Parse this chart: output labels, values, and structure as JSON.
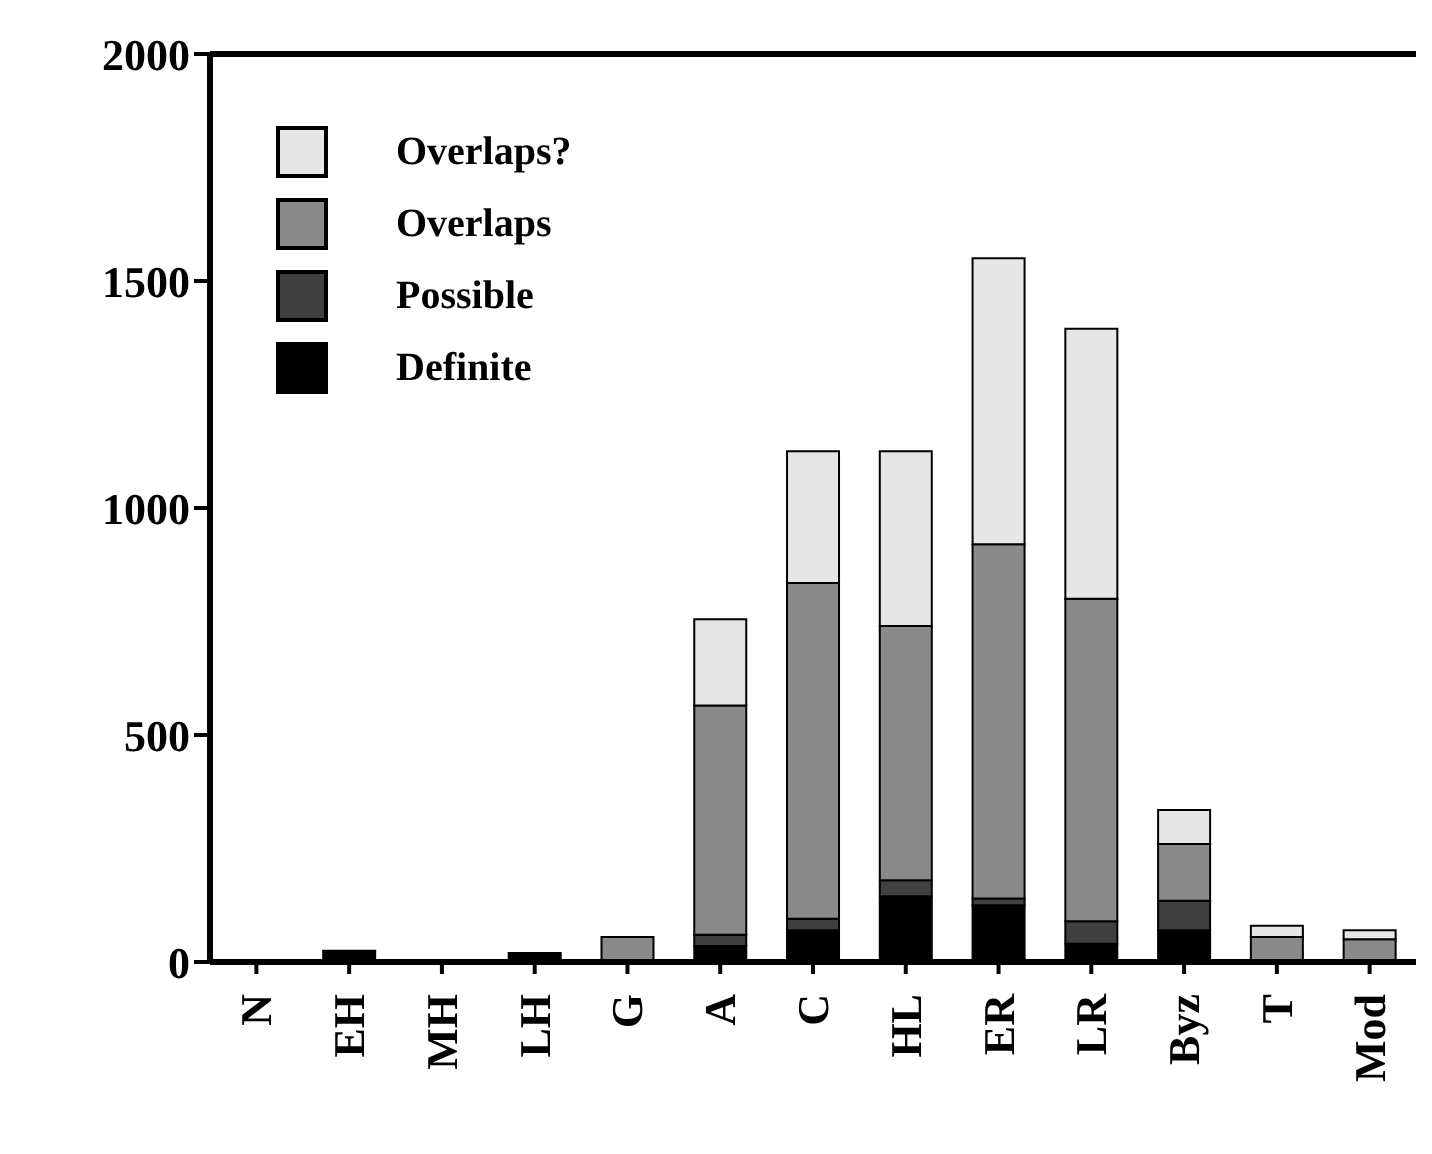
{
  "chart_data": {
    "type": "bar",
    "stacked": true,
    "categories": [
      "N",
      "EH",
      "MH",
      "LH",
      "G",
      "A",
      "C",
      "HL",
      "ER",
      "LR",
      "Byz",
      "T",
      "Mod"
    ],
    "series": [
      {
        "name": "Definite",
        "color": "#000000",
        "values": [
          0,
          25,
          0,
          20,
          0,
          35,
          70,
          145,
          125,
          40,
          70,
          0,
          0
        ]
      },
      {
        "name": "Possible",
        "color": "#404040",
        "values": [
          0,
          0,
          0,
          0,
          0,
          25,
          25,
          35,
          15,
          50,
          65,
          0,
          0
        ]
      },
      {
        "name": "Overlaps",
        "color": "#8a8a8a",
        "values": [
          0,
          0,
          0,
          0,
          55,
          505,
          740,
          560,
          780,
          710,
          125,
          55,
          50
        ]
      },
      {
        "name": "Overlaps?",
        "color": "#e6e6e6",
        "values": [
          0,
          0,
          0,
          0,
          0,
          190,
          290,
          385,
          630,
          595,
          75,
          25,
          20
        ]
      }
    ],
    "ylim": [
      0,
      2000
    ],
    "yticks": [
      0,
      500,
      1000,
      1500,
      2000
    ],
    "grid": false,
    "legend": "top left"
  }
}
